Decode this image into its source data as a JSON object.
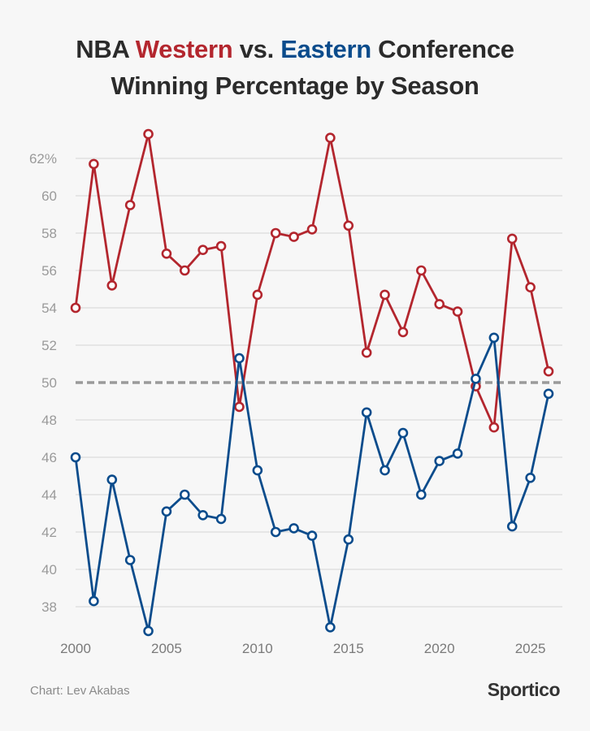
{
  "title": {
    "prefix": "NBA ",
    "western": "Western",
    "middle": " vs. ",
    "eastern": "Eastern",
    "suffix": " Conference",
    "line2": "Winning Percentage by Season"
  },
  "colors": {
    "western": "#b3262e",
    "eastern": "#0b4c8c",
    "reference": "#9a9a9a",
    "grid": "#dcdcdc",
    "background": "#f7f7f7"
  },
  "footer": {
    "credit": "Chart: Lev Akabas",
    "logo": "Sportico"
  },
  "chart_data": {
    "type": "line",
    "title": "NBA Western vs. Eastern Conference Winning Percentage by Season",
    "xlabel": "",
    "ylabel": "",
    "x": [
      2000,
      2001,
      2002,
      2003,
      2004,
      2005,
      2006,
      2007,
      2008,
      2009,
      2010,
      2011,
      2012,
      2013,
      2014,
      2015,
      2016,
      2017,
      2018,
      2019,
      2020,
      2021,
      2022,
      2023,
      2024,
      2025,
      2026
    ],
    "series": [
      {
        "name": "Western",
        "color": "#b3262e",
        "values": [
          54.0,
          61.7,
          55.2,
          59.5,
          63.3,
          56.9,
          56.0,
          57.1,
          57.3,
          48.7,
          54.7,
          58.0,
          57.8,
          58.2,
          63.1,
          58.4,
          51.6,
          54.7,
          52.7,
          56.0,
          54.2,
          53.8,
          49.8,
          47.6,
          57.7,
          55.1,
          50.6
        ]
      },
      {
        "name": "Eastern",
        "color": "#0b4c8c",
        "values": [
          46.0,
          38.3,
          44.8,
          40.5,
          36.7,
          43.1,
          44.0,
          42.9,
          42.7,
          51.3,
          45.3,
          42.0,
          42.2,
          41.8,
          36.9,
          41.6,
          48.4,
          45.3,
          47.3,
          44.0,
          45.8,
          46.2,
          50.2,
          52.4,
          42.3,
          44.9,
          49.4
        ]
      }
    ],
    "reference_line": {
      "value": 50,
      "style": "dashed"
    },
    "x_ticks": [
      2000,
      2005,
      2010,
      2015,
      2020,
      2025
    ],
    "x_tick_labels": [
      "2000",
      "2005",
      "2010",
      "2015",
      "2020",
      "2025"
    ],
    "y_ticks": [
      38,
      40,
      42,
      44,
      46,
      48,
      50,
      52,
      54,
      56,
      58,
      60,
      62
    ],
    "y_tick_labels": [
      "38",
      "40",
      "42",
      "44",
      "46",
      "48",
      "50",
      "52",
      "54",
      "56",
      "58",
      "60",
      "62%"
    ],
    "xlim": [
      2000,
      2026
    ],
    "ylim": [
      36.3,
      63.6
    ],
    "grid": true,
    "legend": "none (series named by colored words in title)"
  }
}
